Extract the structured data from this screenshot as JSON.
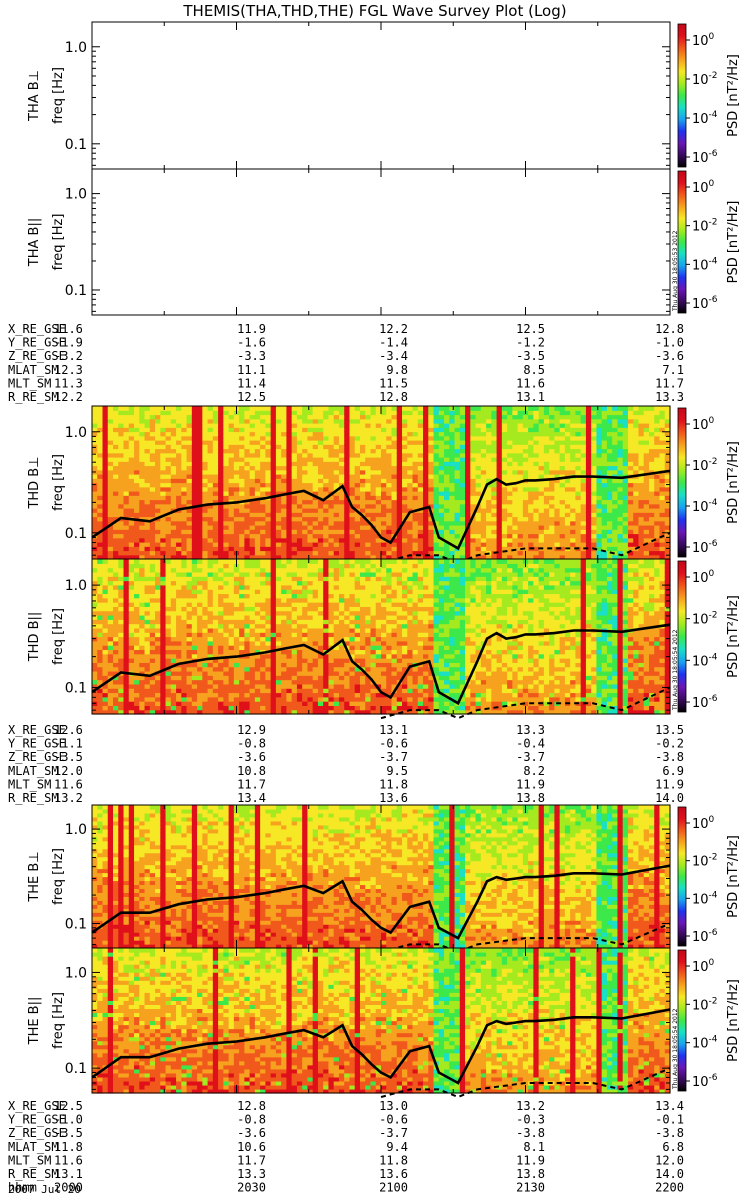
{
  "title": "THEMIS(THA,THD,THE) FGL Wave Survey Plot (Log)",
  "colors": {
    "line": "#000000",
    "colormap": [
      "#000000",
      "#3a0a60",
      "#6a16b8",
      "#1f33f0",
      "#1aa3f0",
      "#19e0c6",
      "#3ce84a",
      "#a4ea1f",
      "#f7e826",
      "#f7a21e",
      "#f1591c",
      "#e0101b",
      "#c4081b"
    ]
  },
  "chart_data": [
    {
      "type": "heatmap",
      "panel_label": "THA B⊥",
      "ylabel": "freq [Hz]",
      "yscale": "log",
      "ylim": [
        0.055,
        1.8
      ],
      "yticks": [
        0.1,
        1.0
      ],
      "ytick_labels": [
        "0.1",
        "1.0"
      ],
      "has_data": false
    },
    {
      "type": "heatmap",
      "panel_label": "THA B||",
      "ylabel": "freq [Hz]",
      "yscale": "log",
      "ylim": [
        0.055,
        1.8
      ],
      "yticks": [
        0.1,
        1.0
      ],
      "ytick_labels": [
        "0.1",
        "1.0"
      ],
      "has_data": false,
      "stamp": "Thu Aug 30 18:05:53 2012"
    },
    {
      "type": "heatmap",
      "panel_label": "THD B⊥",
      "ylabel": "freq [Hz]",
      "yscale": "log",
      "ylim": [
        0.055,
        1.8
      ],
      "yticks": [
        0.1,
        1.0
      ],
      "ytick_labels": [
        "0.1",
        "1.0"
      ],
      "has_data": true,
      "solid_line": {
        "x": [
          0,
          3,
          6,
          9,
          12,
          15,
          18,
          20,
          22,
          24,
          26,
          27,
          28,
          29,
          30,
          31,
          33,
          35,
          36,
          38,
          40,
          41,
          42,
          43,
          44,
          45,
          46,
          48,
          50,
          52,
          55,
          60
        ],
        "y": [
          0.09,
          0.14,
          0.13,
          0.17,
          0.19,
          0.2,
          0.22,
          0.24,
          0.26,
          0.21,
          0.29,
          0.18,
          0.15,
          0.12,
          0.09,
          0.08,
          0.16,
          0.18,
          0.09,
          0.07,
          0.18,
          0.3,
          0.34,
          0.3,
          0.31,
          0.33,
          0.33,
          0.34,
          0.36,
          0.36,
          0.35,
          0.41
        ]
      },
      "dashed_line": {
        "x": [
          30,
          33,
          36,
          38,
          40,
          45,
          50,
          52,
          55,
          60
        ],
        "y": [
          0.05,
          0.06,
          0.06,
          0.05,
          0.06,
          0.07,
          0.07,
          0.07,
          0.06,
          0.1
        ]
      }
    },
    {
      "type": "heatmap",
      "panel_label": "THD B||",
      "ylabel": "freq [Hz]",
      "yscale": "log",
      "ylim": [
        0.055,
        1.8
      ],
      "yticks": [
        0.1,
        1.0
      ],
      "ytick_labels": [
        "0.1",
        "1.0"
      ],
      "has_data": true,
      "stamp": "Thu Aug 30 18:05:54 2012",
      "solid_line": {
        "x": [
          0,
          3,
          6,
          9,
          12,
          15,
          18,
          20,
          22,
          24,
          26,
          27,
          28,
          29,
          30,
          31,
          33,
          35,
          36,
          38,
          40,
          41,
          42,
          43,
          44,
          45,
          46,
          48,
          50,
          52,
          55,
          60
        ],
        "y": [
          0.09,
          0.14,
          0.13,
          0.17,
          0.19,
          0.2,
          0.22,
          0.24,
          0.26,
          0.21,
          0.29,
          0.18,
          0.15,
          0.12,
          0.09,
          0.08,
          0.16,
          0.18,
          0.09,
          0.07,
          0.18,
          0.3,
          0.34,
          0.3,
          0.31,
          0.33,
          0.33,
          0.34,
          0.36,
          0.36,
          0.35,
          0.41
        ]
      },
      "dashed_line": {
        "x": [
          30,
          33,
          36,
          38,
          40,
          45,
          50,
          52,
          55,
          60
        ],
        "y": [
          0.05,
          0.06,
          0.06,
          0.05,
          0.06,
          0.07,
          0.07,
          0.07,
          0.06,
          0.1
        ]
      }
    },
    {
      "type": "heatmap",
      "panel_label": "THE B⊥",
      "ylabel": "freq [Hz]",
      "yscale": "log",
      "ylim": [
        0.055,
        1.8
      ],
      "yticks": [
        0.1,
        1.0
      ],
      "ytick_labels": [
        "0.1",
        "1.0"
      ],
      "has_data": true,
      "solid_line": {
        "x": [
          0,
          3,
          6,
          9,
          12,
          15,
          18,
          20,
          22,
          24,
          26,
          27,
          28,
          29,
          30,
          31,
          33,
          35,
          36,
          38,
          40,
          41,
          42,
          43,
          44,
          45,
          46,
          48,
          50,
          52,
          55,
          60
        ],
        "y": [
          0.08,
          0.13,
          0.13,
          0.16,
          0.18,
          0.19,
          0.21,
          0.23,
          0.25,
          0.21,
          0.28,
          0.17,
          0.14,
          0.11,
          0.09,
          0.08,
          0.15,
          0.17,
          0.09,
          0.07,
          0.17,
          0.28,
          0.31,
          0.29,
          0.3,
          0.31,
          0.31,
          0.32,
          0.34,
          0.34,
          0.33,
          0.41
        ]
      },
      "dashed_line": {
        "x": [
          30,
          33,
          36,
          38,
          40,
          45,
          50,
          52,
          55,
          60
        ],
        "y": [
          0.05,
          0.06,
          0.06,
          0.05,
          0.06,
          0.07,
          0.07,
          0.07,
          0.06,
          0.1
        ]
      }
    },
    {
      "type": "heatmap",
      "panel_label": "THE B||",
      "ylabel": "freq [Hz]",
      "yscale": "log",
      "ylim": [
        0.055,
        1.8
      ],
      "yticks": [
        0.1,
        1.0
      ],
      "ytick_labels": [
        "0.1",
        "1.0"
      ],
      "has_data": true,
      "stamp": "Thu Aug 30 18:05:54 2012",
      "solid_line": {
        "x": [
          0,
          3,
          6,
          9,
          12,
          15,
          18,
          20,
          22,
          24,
          26,
          27,
          28,
          29,
          30,
          31,
          33,
          35,
          36,
          38,
          40,
          41,
          42,
          43,
          44,
          45,
          46,
          48,
          50,
          52,
          55,
          60
        ],
        "y": [
          0.08,
          0.13,
          0.13,
          0.16,
          0.18,
          0.19,
          0.21,
          0.23,
          0.25,
          0.21,
          0.28,
          0.17,
          0.14,
          0.11,
          0.09,
          0.08,
          0.15,
          0.17,
          0.09,
          0.07,
          0.17,
          0.28,
          0.31,
          0.29,
          0.3,
          0.31,
          0.31,
          0.32,
          0.34,
          0.34,
          0.33,
          0.41
        ]
      },
      "dashed_line": {
        "x": [
          30,
          33,
          36,
          38,
          40,
          45,
          50,
          52,
          55,
          60
        ],
        "y": [
          0.05,
          0.06,
          0.06,
          0.05,
          0.06,
          0.07,
          0.07,
          0.07,
          0.06,
          0.1
        ]
      }
    }
  ],
  "colorbar": {
    "label": "PSD [nT²/Hz]",
    "tick_exponents": [
      "0",
      "-2",
      "-4",
      "-6"
    ]
  },
  "ephemeris": [
    {
      "rows": [
        {
          "label": "X_RE_GSE",
          "values": [
            "11.6",
            "11.9",
            "12.2",
            "12.5",
            "12.8"
          ]
        },
        {
          "label": "Y_RE_GSE",
          "values": [
            "-1.9",
            "-1.6",
            "-1.4",
            "-1.2",
            "-1.0"
          ]
        },
        {
          "label": "Z_RE_GSE",
          "values": [
            "-3.2",
            "-3.3",
            "-3.4",
            "-3.5",
            "-3.6"
          ]
        },
        {
          "label": "MLAT_SM",
          "values": [
            "12.3",
            "11.1",
            "9.8",
            "8.5",
            "7.1"
          ]
        },
        {
          "label": "MLT_SM",
          "values": [
            "11.3",
            "11.4",
            "11.5",
            "11.6",
            "11.7"
          ]
        },
        {
          "label": "R_RE_SM",
          "values": [
            "12.2",
            "12.5",
            "12.8",
            "13.1",
            "13.3"
          ]
        }
      ]
    },
    {
      "rows": [
        {
          "label": "X_RE_GSE",
          "values": [
            "12.6",
            "12.9",
            "13.1",
            "13.3",
            "13.5"
          ]
        },
        {
          "label": "Y_RE_GSE",
          "values": [
            "-1.1",
            "-0.8",
            "-0.6",
            "-0.4",
            "-0.2"
          ]
        },
        {
          "label": "Z_RE_GSE",
          "values": [
            "-3.5",
            "-3.6",
            "-3.7",
            "-3.7",
            "-3.8"
          ]
        },
        {
          "label": "MLAT_SM",
          "values": [
            "12.0",
            "10.8",
            "9.5",
            "8.2",
            "6.9"
          ]
        },
        {
          "label": "MLT_SM",
          "values": [
            "11.6",
            "11.7",
            "11.8",
            "11.9",
            "11.9"
          ]
        },
        {
          "label": "R_RE_SM",
          "values": [
            "13.2",
            "13.4",
            "13.6",
            "13.8",
            "14.0"
          ]
        }
      ]
    },
    {
      "rows": [
        {
          "label": "X_RE_GSE",
          "values": [
            "12.5",
            "12.8",
            "13.0",
            "13.2",
            "13.4"
          ]
        },
        {
          "label": "Y_RE_GSE",
          "values": [
            "-1.0",
            "-0.8",
            "-0.6",
            "-0.3",
            "-0.1"
          ]
        },
        {
          "label": "Z_RE_GSE",
          "values": [
            "-3.5",
            "-3.6",
            "-3.7",
            "-3.8",
            "-3.8"
          ]
        },
        {
          "label": "MLAT_SM",
          "values": [
            "11.8",
            "10.6",
            "9.4",
            "8.1",
            "6.8"
          ]
        },
        {
          "label": "MLT_SM",
          "values": [
            "11.6",
            "11.7",
            "11.8",
            "11.9",
            "12.0"
          ]
        },
        {
          "label": "R_RE_SM",
          "values": [
            "13.1",
            "13.3",
            "13.6",
            "13.8",
            "14.0"
          ]
        },
        {
          "label": "hhmm",
          "values": [
            "2000",
            "2030",
            "2100",
            "2130",
            "2200"
          ]
        }
      ]
    }
  ],
  "date_label": "2007 Jul 20"
}
